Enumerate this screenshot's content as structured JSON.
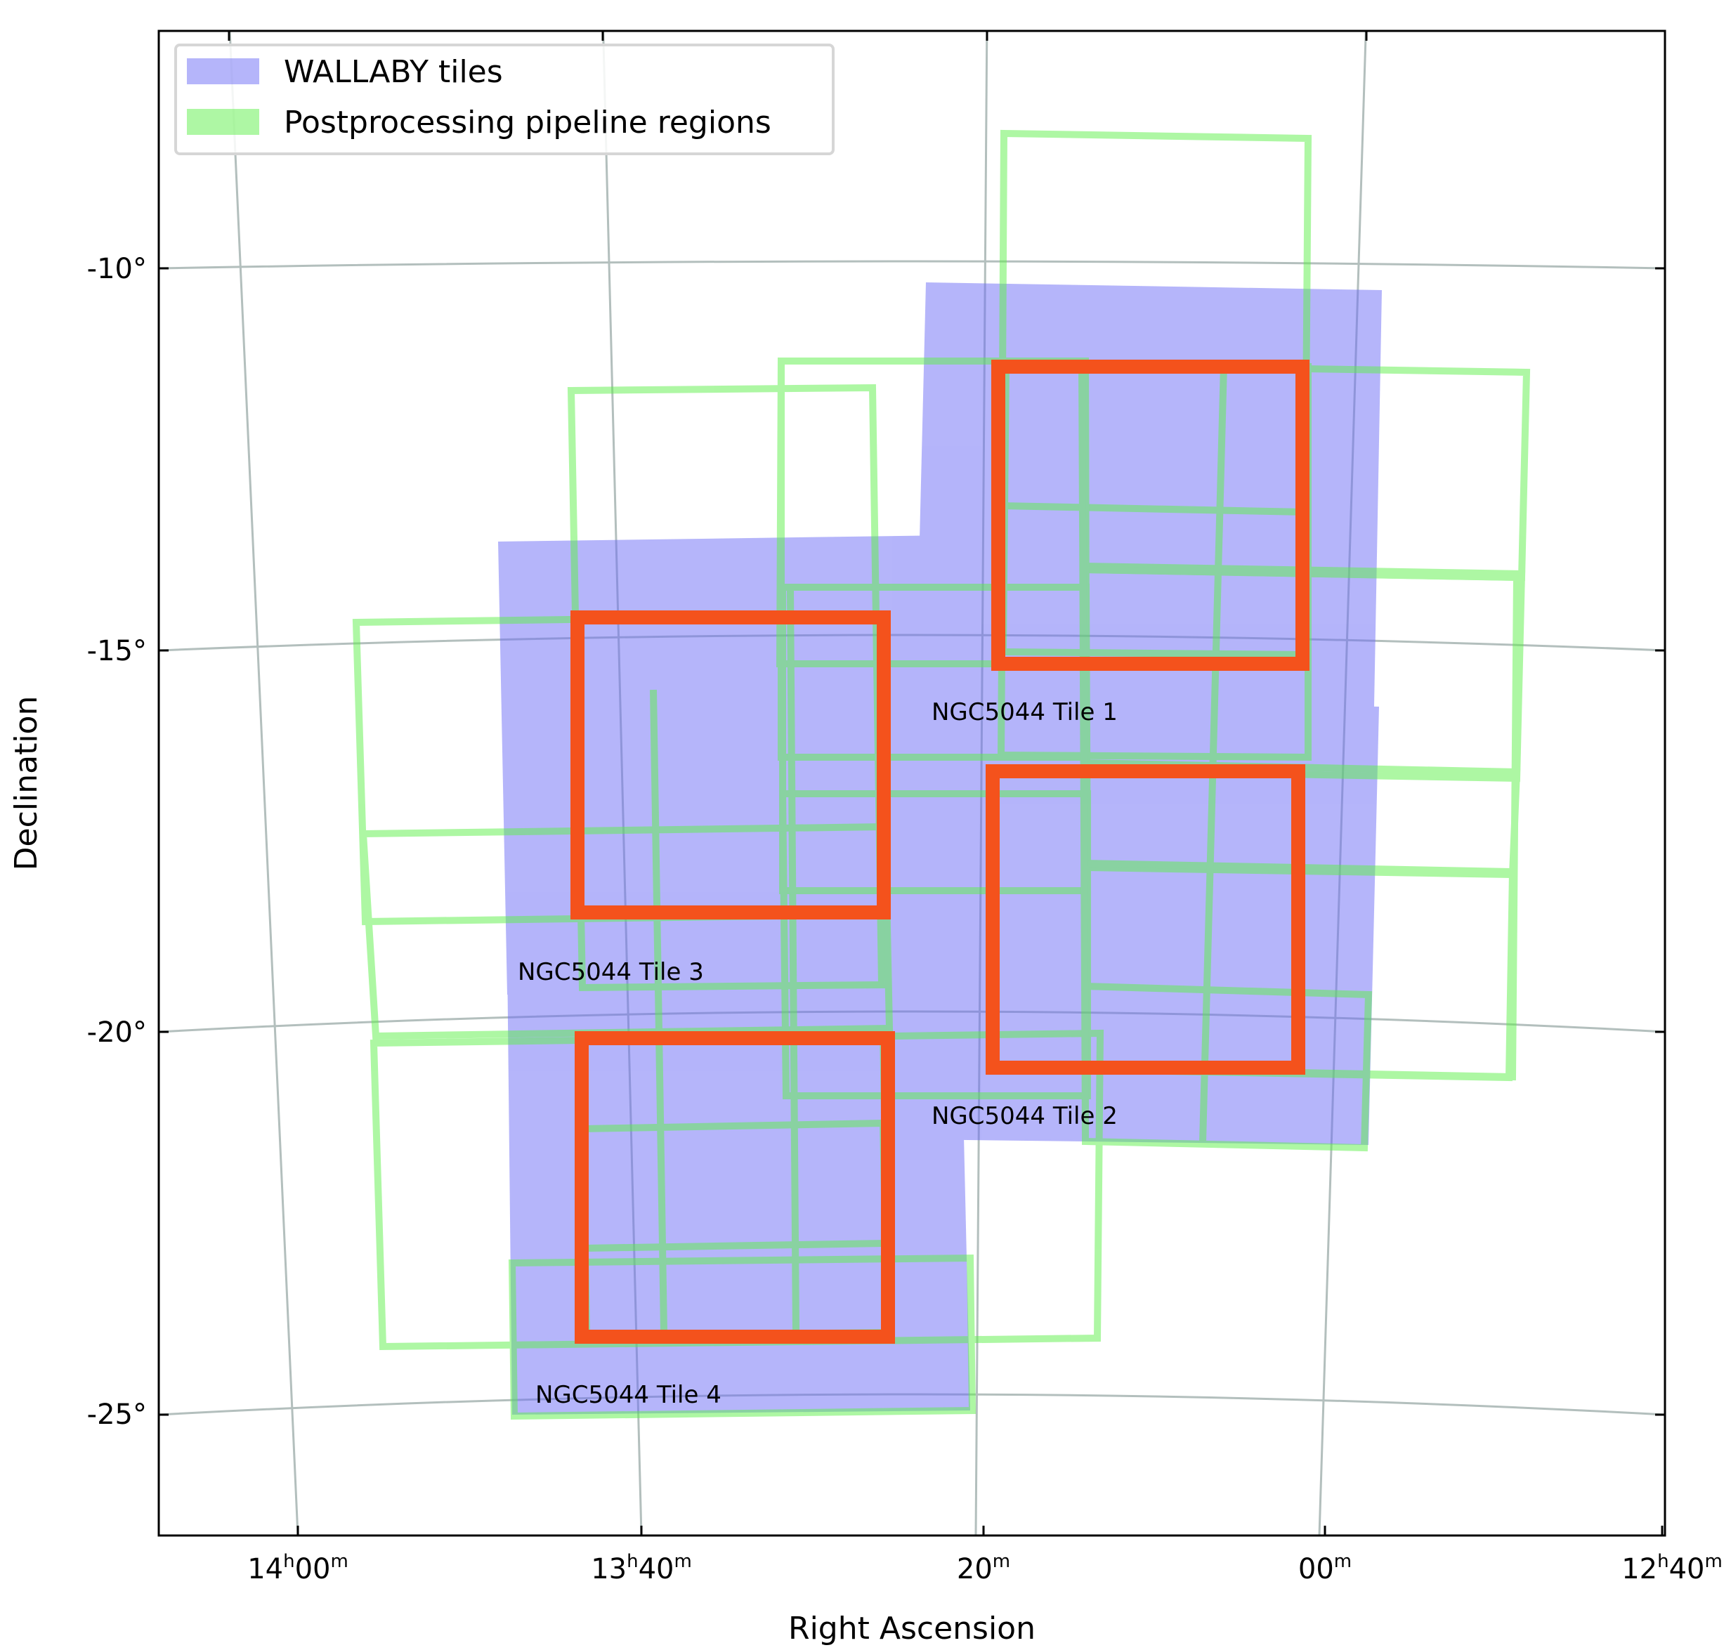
{
  "chart_data": {
    "type": "sky-map",
    "xlabel": "Right Ascension",
    "ylabel": "Declination",
    "grid": true,
    "legend_position": "top-left",
    "x_ticks": [
      {
        "h": "14",
        "m": "00",
        "ra_h": 14.0
      },
      {
        "h": "13",
        "m": "40",
        "ra_h": 13.6667
      },
      {
        "h": "",
        "m": "20",
        "ra_h": 13.3333
      },
      {
        "h": "",
        "m": "00",
        "ra_h": 13.0
      },
      {
        "h": "12",
        "m": "40",
        "ra_h": 12.6667
      }
    ],
    "y_ticks": [
      {
        "label": "-10°",
        "dec": -10
      },
      {
        "label": "-15°",
        "dec": -15
      },
      {
        "label": "-20°",
        "dec": -20
      },
      {
        "label": "-25°",
        "dec": -25
      }
    ],
    "legend": [
      {
        "label": "WALLABY tiles",
        "color": "#b5b5fb"
      },
      {
        "label": "Postprocessing pipeline regions",
        "color": "#b2f5a0"
      }
    ],
    "colors": {
      "tile": "#b5b5fb",
      "tile_overlap": "#5e6bf6",
      "region": "#a8f597",
      "region_overlap": "#52d647",
      "highlight": "#f4521c",
      "grid": "#b3bfbd"
    },
    "tile_labels": [
      "NGC5044 Tile 1",
      "NGC5044 Tile 2",
      "NGC5044 Tile 3",
      "NGC5044 Tile 4"
    ]
  }
}
